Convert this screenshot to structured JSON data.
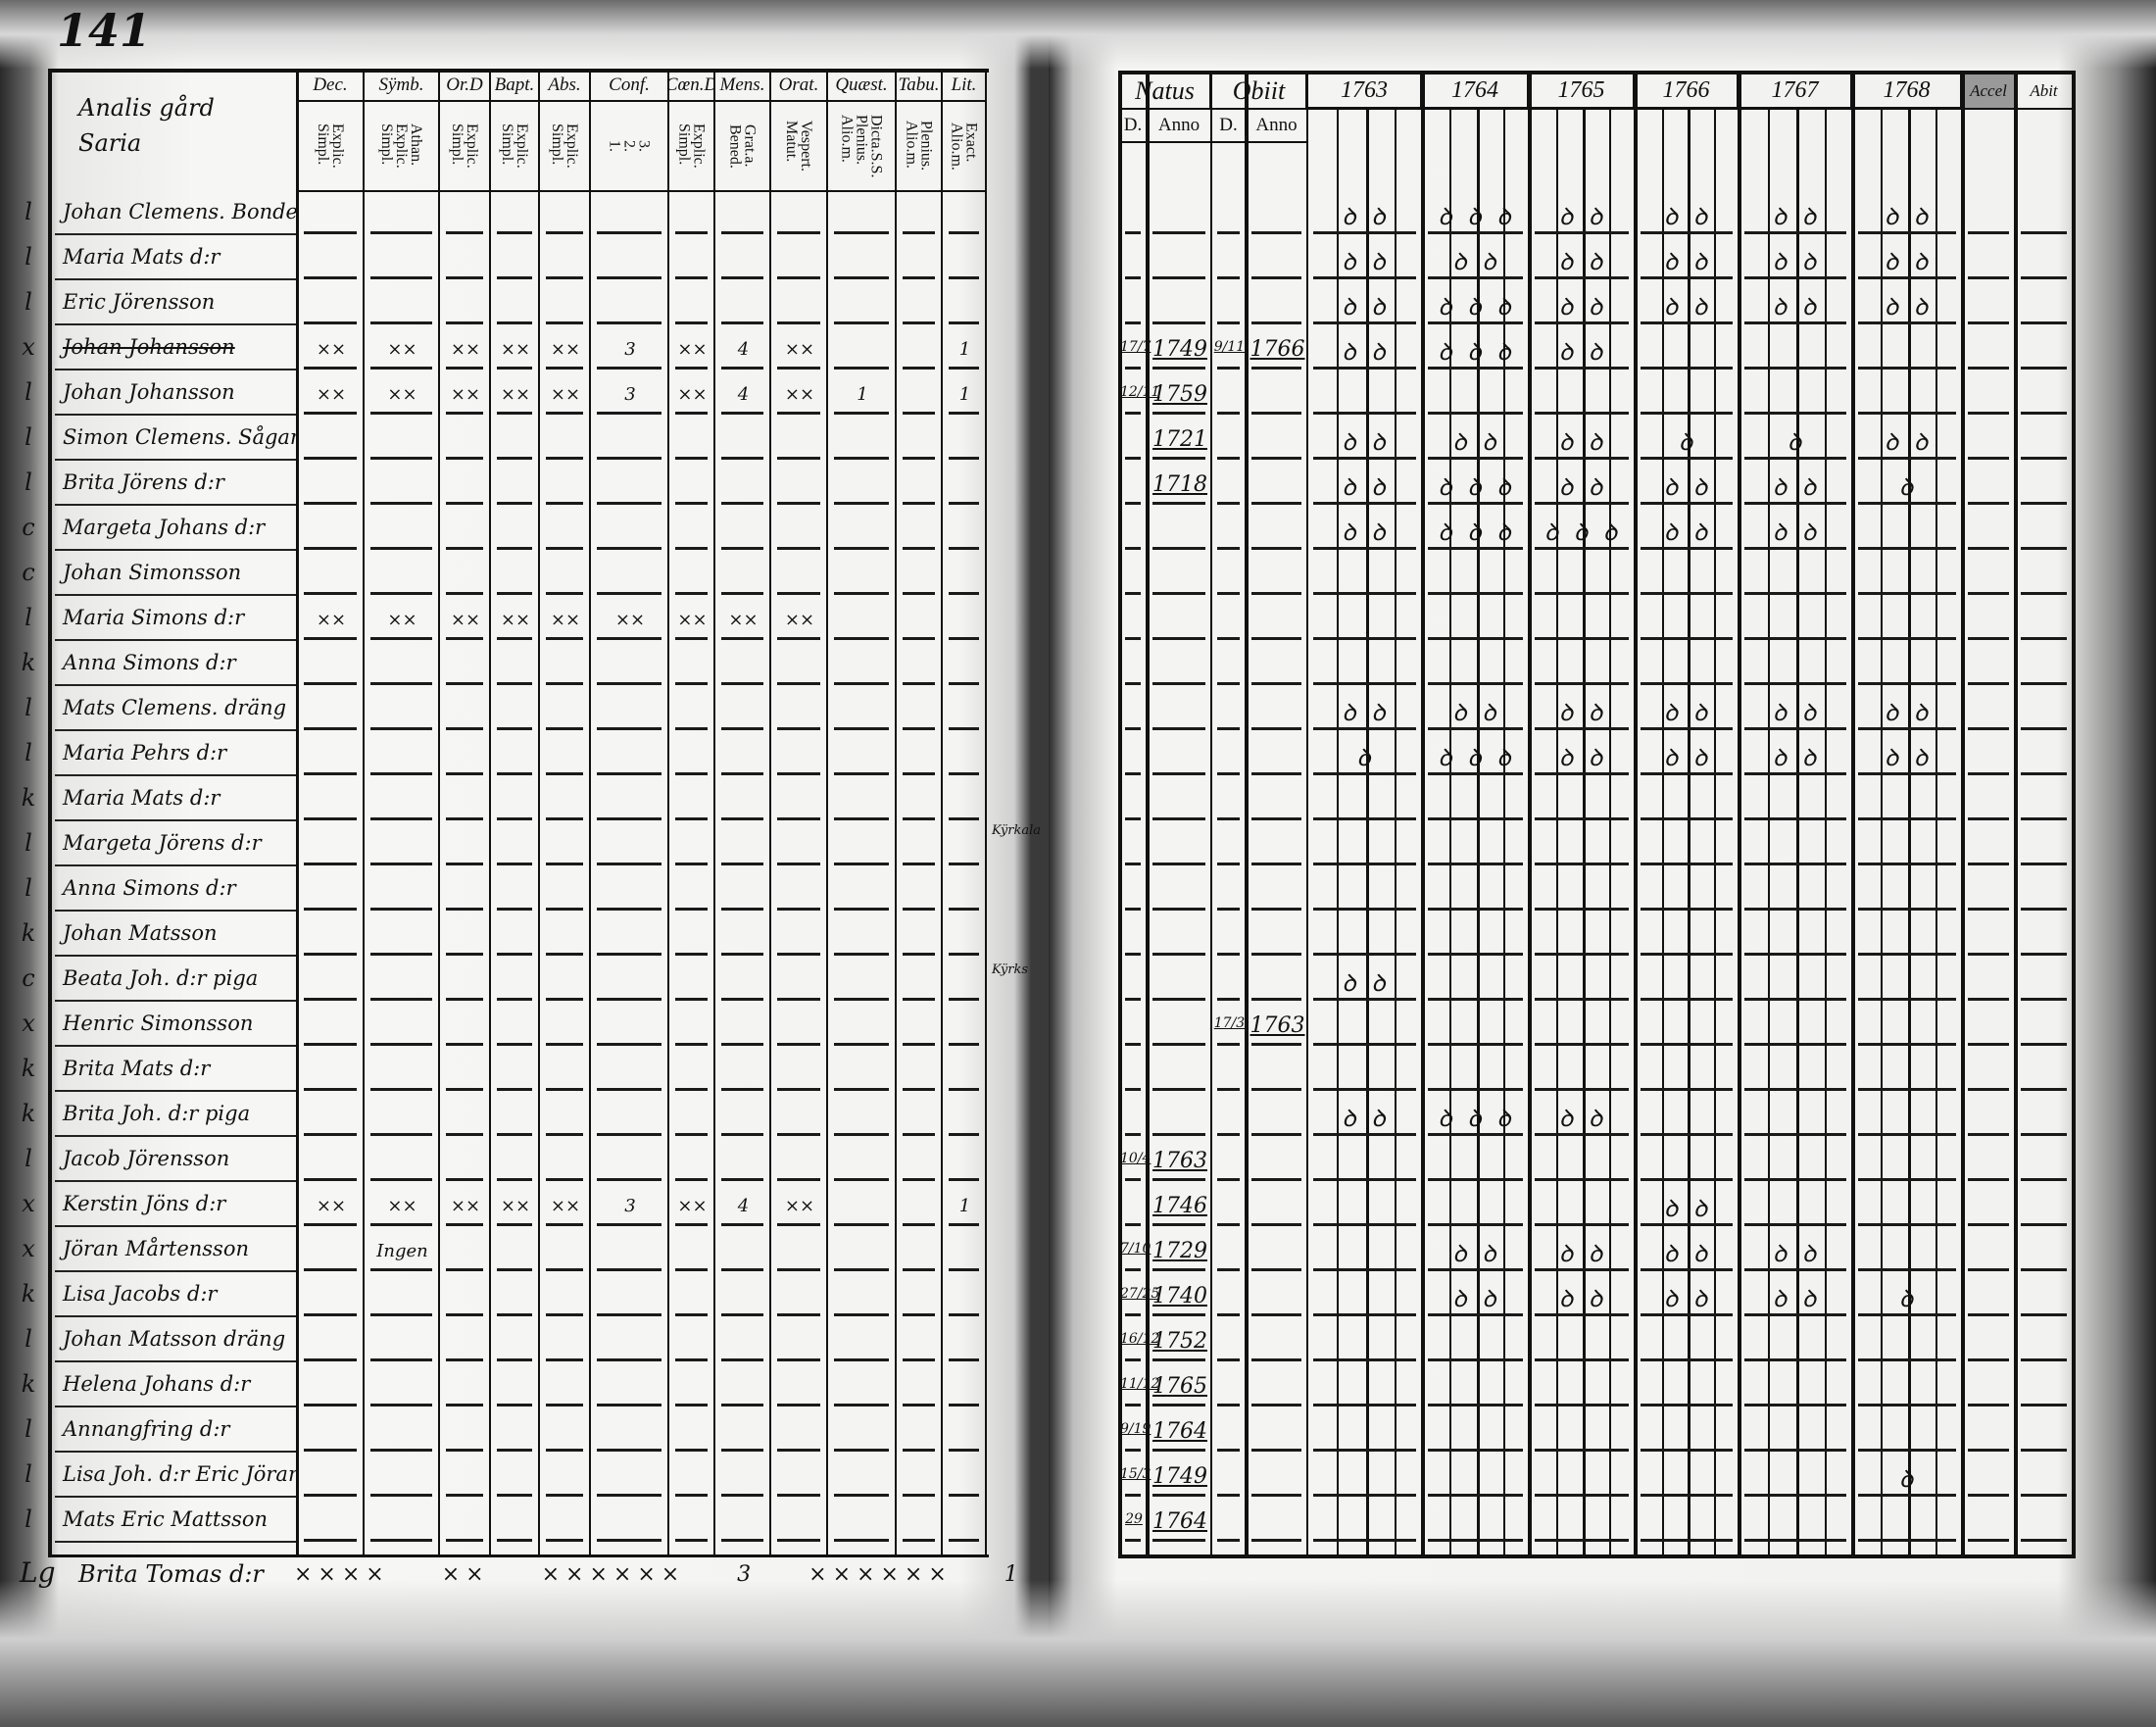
{
  "page_number": "141",
  "farm_heading": "Analis gård Saria",
  "left_headers": [
    {
      "top": "Dec.",
      "sub": "Explic.\nSimpl."
    },
    {
      "top": "Sÿmb.",
      "sub": "Athan.\nExplic.\nSimpl."
    },
    {
      "top": "Or.D",
      "sub": "Explic.\nSimpl."
    },
    {
      "top": "Bapt.",
      "sub": "Explic.\nSimpl."
    },
    {
      "top": "Abs.",
      "sub": "Explic.\nSimpl."
    },
    {
      "top": "Conf.",
      "sub": "3.\n2.\n1."
    },
    {
      "top": "Cœn.D",
      "sub": "Explic.\nSimpl."
    },
    {
      "top": "Mens.",
      "sub": "Grat.a.\nBened."
    },
    {
      "top": "Orat.",
      "sub": "Vespert.\nMatut."
    },
    {
      "top": "Quæst.",
      "sub": "Dicta.S.S.\nPlenius.\nAlio.m."
    },
    {
      "top": "Tabu.",
      "sub": "Plenius.\nAlio.m."
    },
    {
      "top": "Lit.",
      "sub": "Exact.\nAlio.m."
    }
  ],
  "right_headers": {
    "natus": "Natus",
    "obiit": "Obiit",
    "d_label": "D.",
    "anno_label": "Anno",
    "years": [
      "1763",
      "1764",
      "1765",
      "1766",
      "1767",
      "1768"
    ],
    "accel": "Accel",
    "abit": "Abit"
  },
  "rows": [
    {
      "margin": "l",
      "name": "Johan Clemens. Bonde",
      "marks": [],
      "years": [
        "ꝺ ꝺ",
        "ꝺ ꝺ ꝺ",
        "ꝺ ꝺ",
        "ꝺ ꝺ",
        "ꝺ ꝺ",
        "ꝺ ꝺ"
      ]
    },
    {
      "margin": "l",
      "name": "Maria Mats d:r",
      "marks": [],
      "years": [
        "ꝺ ꝺ",
        "ꝺ ꝺ",
        "ꝺ ꝺ",
        "ꝺ ꝺ",
        "ꝺ ꝺ",
        "ꝺ ꝺ"
      ]
    },
    {
      "margin": "l",
      "name": "Eric Jörensson",
      "marks": [],
      "years": [
        "ꝺ ꝺ",
        "ꝺ ꝺ ꝺ",
        "ꝺ ꝺ",
        "ꝺ ꝺ",
        "ꝺ ꝺ",
        "ꝺ ꝺ"
      ]
    },
    {
      "margin": "x",
      "name": "Johan Johansson",
      "struck": true,
      "marks": [
        "××",
        "××",
        "××",
        "××",
        "××",
        "3",
        "××",
        "4",
        "××",
        "",
        "",
        "1"
      ],
      "natus_d": "17/7",
      "natus_anno": "1749",
      "obiit_d": "9/11",
      "obiit_anno": "1766",
      "years": [
        "ꝺ ꝺ",
        "ꝺ ꝺ ꝺ",
        "ꝺ ꝺ",
        "",
        "",
        ""
      ]
    },
    {
      "margin": "l",
      "name": "Johan Johansson",
      "marks": [
        "××",
        "××",
        "××",
        "××",
        "××",
        "3",
        "××",
        "4",
        "××",
        "1",
        "",
        "1"
      ],
      "natus_d": "12/11",
      "natus_anno": "1759",
      "years": [
        "",
        "",
        "",
        "",
        "",
        ""
      ]
    },
    {
      "margin": "l",
      "name": "Simon Clemens. Sågare",
      "marks": [],
      "natus_anno": "1721",
      "years": [
        "ꝺ ꝺ",
        "ꝺ ꝺ",
        "ꝺ ꝺ",
        "ꝺ",
        "ꝺ",
        "ꝺ ꝺ"
      ]
    },
    {
      "margin": "l",
      "name": "Brita Jörens d:r",
      "marks": [],
      "natus_anno": "1718",
      "years": [
        "ꝺ ꝺ",
        "ꝺ ꝺ ꝺ",
        "ꝺ ꝺ",
        "ꝺ ꝺ",
        "ꝺ ꝺ",
        "ꝺ"
      ]
    },
    {
      "margin": "c",
      "name": "Margeta Johans d:r",
      "marks": [],
      "years": [
        "ꝺ ꝺ",
        "ꝺ ꝺ ꝺ",
        "ꝺ ꝺ ꝺ",
        "ꝺ ꝺ",
        "ꝺ ꝺ",
        ""
      ]
    },
    {
      "margin": "c",
      "name": "Johan Simonsson",
      "marks": [],
      "years": [
        "",
        "",
        "",
        "",
        "",
        ""
      ]
    },
    {
      "margin": "l",
      "name": "Maria Simons d:r",
      "marks": [
        "××",
        "××",
        "××",
        "××",
        "××",
        "××",
        "××",
        "××",
        "××",
        "",
        "",
        ""
      ],
      "years": [
        "",
        "",
        "",
        "",
        "",
        ""
      ]
    },
    {
      "margin": "k",
      "name": "Anna Simons d:r",
      "marks": [],
      "years": [
        "",
        "",
        "",
        "",
        "",
        ""
      ]
    },
    {
      "margin": "l",
      "name": "Mats Clemens. dräng",
      "marks": [],
      "years": [
        "ꝺ ꝺ",
        "ꝺ ꝺ",
        "ꝺ ꝺ",
        "ꝺ ꝺ",
        "ꝺ ꝺ",
        "ꝺ ꝺ"
      ]
    },
    {
      "margin": "l",
      "name": "Maria Pehrs d:r",
      "marks": [],
      "years": [
        "ꝺ",
        "ꝺ ꝺ ꝺ",
        "ꝺ ꝺ",
        "ꝺ ꝺ",
        "ꝺ ꝺ",
        "ꝺ ꝺ"
      ]
    },
    {
      "margin": "k",
      "name": "Maria Mats d:r",
      "marks": [],
      "years": [
        "",
        "",
        "",
        "",
        "",
        ""
      ]
    },
    {
      "margin": "l",
      "name": "Margeta Jörens d:r",
      "marks": [],
      "years": [
        "",
        "",
        "",
        "",
        "",
        ""
      ]
    },
    {
      "margin": "l",
      "name": "Anna Simons d:r",
      "marks": [],
      "years": [
        "",
        "",
        "",
        "",
        "",
        ""
      ]
    },
    {
      "margin": "k",
      "name": "Johan Matsson",
      "marks": [],
      "years": [
        "",
        "",
        "",
        "",
        "",
        ""
      ]
    },
    {
      "margin": "c",
      "name": "Beata Joh. d:r piga",
      "marks": [],
      "years": [
        "ꝺ ꝺ",
        "",
        "",
        "",
        "",
        ""
      ]
    },
    {
      "margin": "x",
      "name": "Henric Simonsson",
      "marks": [],
      "obiit_d": "17/3",
      "obiit_anno": "1763",
      "years": [
        "",
        "",
        "",
        "",
        "",
        ""
      ]
    },
    {
      "margin": "k",
      "name": "Brita Mats d:r",
      "marks": [],
      "years": [
        "",
        "",
        "",
        "",
        "",
        ""
      ]
    },
    {
      "margin": "k",
      "name": "Brita Joh. d:r piga",
      "marks": [],
      "years": [
        "ꝺ ꝺ",
        "ꝺ ꝺ ꝺ",
        "ꝺ ꝺ",
        "",
        "",
        ""
      ]
    },
    {
      "margin": "l",
      "name": "Jacob Jörensson",
      "marks": [],
      "natus_d": "10/4",
      "natus_anno": "1763",
      "years": [
        "",
        "",
        "",
        "",
        "",
        ""
      ]
    },
    {
      "margin": "x",
      "name": "Kerstin Jöns d:r",
      "marks": [
        "××",
        "××",
        "××",
        "××",
        "××",
        "3",
        "××",
        "4",
        "××",
        "",
        "",
        "1"
      ],
      "natus_anno": "1746",
      "years": [
        "",
        "",
        "",
        "ꝺ ꝺ",
        "",
        ""
      ]
    },
    {
      "margin": "x",
      "name": "Jöran Mårtensson",
      "marks": [
        "",
        "Ingen",
        "",
        "",
        "",
        "",
        "",
        "",
        "",
        "",
        "",
        ""
      ],
      "natus_d": "7/10",
      "natus_anno": "1729",
      "years": [
        "",
        "ꝺ ꝺ",
        "ꝺ ꝺ",
        "ꝺ ꝺ",
        "ꝺ ꝺ",
        ""
      ]
    },
    {
      "margin": "k",
      "name": "Lisa Jacobs d:r",
      "marks": [],
      "natus_d": "27/25",
      "natus_anno": "1740",
      "years": [
        "",
        "ꝺ ꝺ",
        "ꝺ ꝺ",
        "ꝺ ꝺ",
        "ꝺ ꝺ",
        "ꝺ"
      ]
    },
    {
      "margin": "l",
      "name": "Johan Matsson dräng",
      "marks": [],
      "natus_d": "16/12",
      "natus_anno": "1752",
      "years": [
        "",
        "",
        "",
        "",
        "",
        ""
      ]
    },
    {
      "margin": "k",
      "name": "Helena Johans d:r",
      "marks": [],
      "natus_d": "11/12",
      "natus_anno": "1765",
      "years": [
        "",
        "",
        "",
        "",
        "",
        ""
      ]
    },
    {
      "margin": "l",
      "name": "Annangfring d:r",
      "marks": [],
      "natus_d": "9/19",
      "natus_anno": "1764",
      "years": [
        "",
        "",
        "",
        "",
        "",
        ""
      ]
    },
    {
      "margin": "l",
      "name": "Lisa Joh. d:r  Eric Jöransson hustru",
      "marks": [],
      "natus_d": "15/3",
      "natus_anno": "1749",
      "years": [
        "",
        "",
        "",
        "",
        "",
        "ꝺ"
      ]
    },
    {
      "margin": "l",
      "name": "Mats Eric Mattsson",
      "marks": [],
      "natus_d": "29",
      "natus_anno": "1764",
      "years": [
        "",
        "",
        "",
        "",
        "",
        ""
      ]
    }
  ],
  "footer_row": {
    "margin": "Lg",
    "name": "Brita Tomas d:r",
    "marks": "×××× ×× ×××××× 3 ×××××× 1"
  },
  "side_notes": [
    "Kÿrkala",
    "Kÿrks"
  ]
}
